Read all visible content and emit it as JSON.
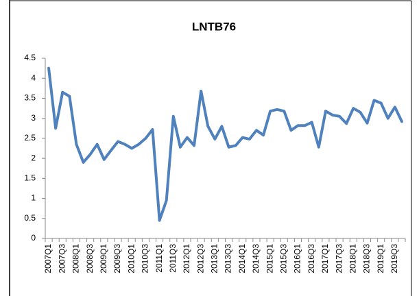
{
  "chart_data": {
    "type": "line",
    "title": "LNTB76",
    "categories": [
      "2007Q1",
      null,
      "2007Q3",
      null,
      "2008Q1",
      null,
      "2008Q3",
      null,
      "2009Q1",
      null,
      "2009Q3",
      null,
      "2010Q1",
      null,
      "2010Q3",
      null,
      "2011Q1",
      null,
      "2011Q3",
      null,
      "2012Q1",
      null,
      "2012Q3",
      null,
      "2013Q1",
      null,
      "2013Q3",
      null,
      "2014Q1",
      null,
      "2014Q3",
      null,
      "2015Q1",
      null,
      "2015Q3",
      null,
      "2016Q1",
      null,
      "2016Q3",
      null,
      "2017Q1",
      null,
      "2017Q3",
      null,
      "2018Q1",
      null,
      "2018Q3",
      null,
      "2019Q1",
      null,
      "2019Q3",
      null
    ],
    "values": [
      4.25,
      2.75,
      3.65,
      3.55,
      2.35,
      1.9,
      2.1,
      2.35,
      1.97,
      2.2,
      2.42,
      2.35,
      2.25,
      2.35,
      2.5,
      2.72,
      0.45,
      0.95,
      3.05,
      2.28,
      2.52,
      2.32,
      3.68,
      2.8,
      2.48,
      2.8,
      2.28,
      2.32,
      2.52,
      2.48,
      2.7,
      2.58,
      3.18,
      3.22,
      3.18,
      2.7,
      2.82,
      2.82,
      2.9,
      2.28,
      3.18,
      3.08,
      3.05,
      2.87,
      3.25,
      3.15,
      2.88,
      3.45,
      3.38,
      3.0,
      3.28,
      2.92
    ],
    "color": "#4f81bd",
    "ylim": [
      0,
      4.5
    ],
    "yticks": [
      0,
      0.5,
      1,
      1.5,
      2,
      2.5,
      3,
      3.5,
      4,
      4.5
    ],
    "grid": false
  }
}
